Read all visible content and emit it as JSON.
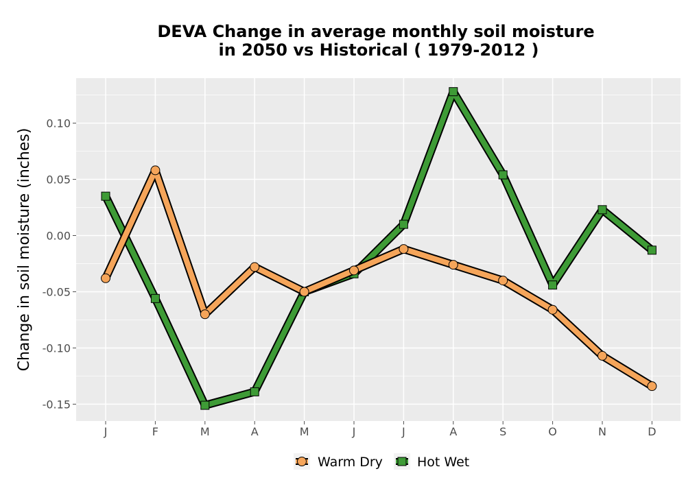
{
  "chart_data": {
    "type": "line",
    "title_line1": "DEVA  Change in average monthly soil moisture",
    "title_line2": "in 2050 vs Historical ( 1979-2012 )",
    "xlabel": "",
    "ylabel": "Change in soil moisture (inches)",
    "categories": [
      "J",
      "F",
      "M",
      "A",
      "M",
      "J",
      "J",
      "A",
      "S",
      "O",
      "N",
      "D"
    ],
    "ylim": [
      -0.165,
      0.14
    ],
    "yticks": [
      -0.15,
      -0.1,
      -0.05,
      0.0,
      0.05,
      0.1
    ],
    "ytick_labels": [
      "-0.15",
      "-0.10",
      "-0.05",
      "0.00",
      "0.05",
      "0.10"
    ],
    "grid": true,
    "legend_position": "bottom",
    "series": [
      {
        "name": "Warm Dry",
        "color": "#F5A55A",
        "marker": "circle",
        "values": [
          -0.038,
          0.058,
          -0.07,
          -0.028,
          -0.05,
          -0.031,
          -0.012,
          -0.026,
          -0.04,
          -0.066,
          -0.107,
          -0.134
        ]
      },
      {
        "name": "Hot Wet",
        "color": "#3E9B36",
        "marker": "square",
        "values": [
          0.035,
          -0.056,
          -0.151,
          -0.139,
          -0.05,
          -0.034,
          0.01,
          0.128,
          0.054,
          -0.044,
          0.023,
          -0.013
        ]
      }
    ]
  }
}
